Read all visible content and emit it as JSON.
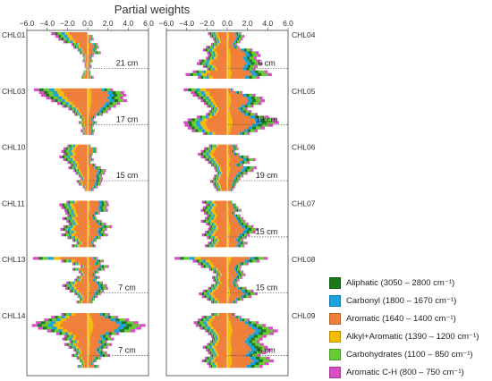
{
  "chart_data": {
    "type": "bar",
    "orientation": "horizontal",
    "stacked": true,
    "title": "Partial weights",
    "xlim": [
      -6.0,
      6.0
    ],
    "x_ticks": [
      "−6.0",
      "−4.0",
      "−2.0",
      "0.0",
      "2.0",
      "4.0",
      "6.0"
    ],
    "legend_position": "bottom-right",
    "series": [
      {
        "name": "Aliphatic (3050 – 2800 cm⁻¹)",
        "color": "#1a7a1a"
      },
      {
        "name": "Carbonyl (1800 – 1670 cm⁻¹)",
        "color": "#1aa3e0"
      },
      {
        "name": "Aromatic (1640 – 1400 cm⁻¹)",
        "color": "#f07f3a"
      },
      {
        "name": "Alkyl+Aromatic (1390 – 1200 cm⁻¹)",
        "color": "#f5bd00"
      },
      {
        "name": "Carbohydrates (1100 – 850 cm⁻¹)",
        "color": "#66cc33"
      },
      {
        "name": "Aromatic C-H (800 – 750 cm⁻¹)",
        "color": "#d84fc4"
      }
    ],
    "panels": [
      {
        "cores": [
          {
            "label": "CHL01",
            "depth": "21 cm",
            "pos": [
              0.0,
              0.5,
              0.6,
              0.3,
              1.0,
              1.1,
              0.9,
              1.3,
              0.6,
              0.4,
              0.5,
              0.3,
              0.4,
              0.2,
              0.3,
              0.3,
              0.6
            ],
            "neg": [
              3.6,
              3.2,
              2.9,
              2.4,
              1.6,
              1.4,
              1.0,
              0.8,
              0.5,
              0.4,
              0.5,
              0.3,
              0.3,
              0.2,
              0.4,
              0.5,
              0.6
            ]
          },
          {
            "label": "CHL03",
            "depth": "17 cm",
            "pos": [
              2.5,
              3.6,
              3.8,
              3.5,
              3.9,
              3.2,
              2.8,
              2.3,
              2.0,
              1.5,
              0.8,
              0.6,
              0.9,
              0.6,
              0.5,
              0.7,
              0.6
            ],
            "neg": [
              5.3,
              4.8,
              4.6,
              4.1,
              3.6,
              3.0,
              2.5,
              1.9,
              1.5,
              1.3,
              0.8,
              0.6,
              0.9,
              0.6,
              0.5,
              0.7,
              0.5
            ]
          },
          {
            "label": "CHL10",
            "depth": "15 cm",
            "pos": [
              0.3,
              0.9,
              0.9,
              0.5,
              0.4,
              0.6,
              0.3,
              0.8,
              1.3,
              1.8,
              1.7,
              1.4,
              1.5,
              1.4,
              1.3,
              1.0,
              0.6
            ],
            "neg": [
              2.0,
              2.4,
              2.6,
              2.4,
              2.8,
              2.4,
              2.0,
              1.7,
              1.9,
              1.4,
              1.2,
              0.9,
              0.7,
              1.1,
              0.9,
              0.5,
              0.3
            ]
          },
          {
            "label": "CHL11",
            "depth": "",
            "pos": [
              2.0,
              2.1,
              1.9,
              2.0,
              1.2,
              0.8,
              0.9,
              1.4,
              1.8,
              2.4,
              1.9,
              1.7,
              2.0,
              1.3,
              0.9,
              0.6,
              0.8
            ],
            "neg": [
              2.1,
              2.8,
              2.6,
              2.3,
              2.2,
              2.0,
              2.5,
              2.1,
              1.9,
              2.4,
              2.7,
              2.2,
              2.6,
              2.0,
              1.5,
              1.1,
              1.6
            ]
          },
          {
            "label": "CHL13",
            "depth": "7 cm",
            "pos": [
              1.0,
              1.6,
              1.3,
              2.1,
              1.7,
              1.1,
              0.8,
              1.2,
              0.9,
              1.5,
              1.9,
              2.0,
              1.6,
              1.3,
              1.0,
              0.7,
              0.5
            ],
            "neg": [
              5.4,
              2.6,
              1.5,
              0.7,
              1.5,
              0.9,
              0.7,
              1.1,
              1.3,
              2.1,
              2.5,
              2.2,
              1.8,
              1.3,
              1.0,
              0.8,
              1.1
            ]
          },
          {
            "label": "CHL14",
            "depth": "7 cm",
            "pos": [
              2.2,
              3.0,
              4.1,
              5.0,
              5.7,
              5.3,
              4.7,
              3.1,
              2.3,
              2.6,
              1.9,
              2.4,
              2.0,
              1.5,
              1.9,
              2.2,
              1.3,
              0.9,
              0.6,
              1.1
            ],
            "neg": [
              2.6,
              3.6,
              4.3,
              5.1,
              5.5,
              4.9,
              4.0,
              3.1,
              2.3,
              2.5,
              1.8,
              2.3,
              1.9,
              1.4,
              1.2,
              1.6,
              1.1,
              0.8,
              0.6,
              1.0
            ]
          }
        ]
      },
      {
        "cores": [
          {
            "label": "CHL04",
            "depth": "6 cm",
            "pos": [
              1.4,
              1.7,
              1.5,
              1.3,
              1.0,
              1.2,
              2.5,
              3.1,
              3.3,
              2.9,
              3.2,
              3.5,
              3.0,
              2.8,
              4.0,
              4.4,
              3.2
            ],
            "neg": [
              1.9,
              1.7,
              1.4,
              1.3,
              1.6,
              2.1,
              2.4,
              2.0,
              1.9,
              2.1,
              2.8,
              3.0,
              2.4,
              2.0,
              3.4,
              4.1,
              2.9
            ]
          },
          {
            "label": "CHL05",
            "depth": "13 cm",
            "pos": [
              0.6,
              1.5,
              2.8,
              3.5,
              3.7,
              3.4,
              2.6,
              2.0,
              2.4,
              3.0,
              4.1,
              4.9,
              5.1,
              4.5,
              3.7,
              3.0,
              2.2
            ],
            "neg": [
              4.3,
              3.6,
              3.4,
              2.9,
              2.6,
              2.3,
              2.0,
              1.6,
              1.8,
              2.1,
              3.0,
              3.9,
              4.3,
              4.2,
              3.9,
              3.5,
              2.4
            ]
          },
          {
            "label": "CHL06",
            "depth": "19 cm",
            "pos": [
              1.0,
              1.1,
              0.8,
              1.2,
              2.1,
              2.8,
              2.2,
              1.6,
              2.9,
              2.6,
              2.0,
              1.6,
              1.3,
              1.1,
              0.9,
              0.8,
              0.6
            ],
            "neg": [
              1.8,
              2.3,
              2.6,
              2.9,
              2.6,
              2.2,
              1.9,
              1.6,
              1.3,
              1.2,
              1.0,
              1.3,
              1.4,
              1.7,
              1.4,
              1.3,
              1.1
            ]
          },
          {
            "label": "CHL07",
            "depth": "15 cm",
            "pos": [
              0.5,
              0.9,
              1.1,
              1.4,
              0.8,
              1.3,
              1.6,
              1.8,
              2.1,
              2.6,
              3.1,
              2.8,
              2.2,
              1.9,
              1.6,
              2.0,
              1.7
            ],
            "neg": [
              2.5,
              2.1,
              2.4,
              2.6,
              2.3,
              2.0,
              2.2,
              2.6,
              2.1,
              1.8,
              1.9,
              2.2,
              2.5,
              2.0,
              1.6,
              1.9,
              2.2
            ]
          },
          {
            "label": "CHL08",
            "depth": "15 cm",
            "pos": [
              4.0,
              3.2,
              2.1,
              1.4,
              1.3,
              1.6,
              1.8,
              1.5,
              1.2,
              1.0,
              1.1,
              1.9,
              2.6,
              3.0,
              2.4,
              1.6,
              1.0
            ],
            "neg": [
              5.2,
              3.4,
              2.9,
              2.6,
              1.8,
              1.4,
              1.1,
              1.5,
              1.4,
              1.2,
              1.6,
              1.9,
              2.4,
              2.8,
              2.5,
              2.0,
              1.6
            ]
          },
          {
            "label": "CHL09",
            "depth": "6 cm",
            "pos": [
              0.8,
              1.4,
              2.2,
              3.1,
              3.8,
              4.5,
              5.0,
              4.6,
              3.9,
              3.5,
              3.2,
              3.6,
              4.0,
              4.3,
              3.8,
              3.3,
              4.2,
              4.6,
              4.1,
              3.5
            ],
            "neg": [
              1.6,
              2.5,
              2.9,
              3.3,
              3.1,
              2.7,
              2.2,
              1.9,
              1.6,
              1.5,
              1.7,
              2.0,
              2.4,
              2.1,
              1.9,
              1.7,
              2.2,
              2.5,
              2.0,
              1.8
            ]
          }
        ]
      }
    ]
  }
}
